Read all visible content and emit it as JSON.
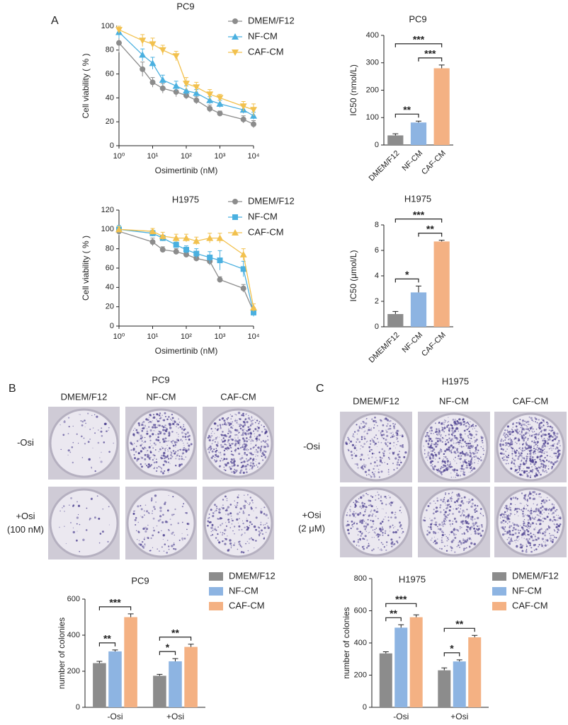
{
  "panel_labels": {
    "a": "A",
    "b": "B",
    "c": "C"
  },
  "chart_data": [
    {
      "type": "scatter",
      "title": "PC9",
      "x_label": "Osimertinib (nM)",
      "y_label": "Cell viability ( % )",
      "x_scale": "log",
      "x": [
        1,
        5,
        10,
        20,
        50,
        100,
        200,
        500,
        1000,
        5000,
        10000
      ],
      "xlim": [
        1,
        10000
      ],
      "xticks": [
        {
          "value": 1,
          "label": "10⁰"
        },
        {
          "value": 10,
          "label": "10¹"
        },
        {
          "value": 100,
          "label": "10²"
        },
        {
          "value": 1000,
          "label": "10³"
        },
        {
          "value": 10000,
          "label": "10⁴"
        }
      ],
      "ylim": [
        0,
        100
      ],
      "yticks": [
        0,
        20,
        40,
        60,
        80,
        100
      ],
      "legend": "upper right",
      "series": [
        {
          "name": "DMEM/F12",
          "color": "#8c8c8c",
          "marker": "circle",
          "values": [
            86,
            64,
            53,
            48,
            45,
            42,
            38,
            31,
            27,
            22,
            18
          ],
          "errors": [
            8,
            6,
            4,
            4,
            4,
            3,
            3,
            3,
            2,
            3,
            3
          ]
        },
        {
          "name": "NF-CM",
          "color": "#4ab0e0",
          "marker": "triangle-up",
          "values": [
            95,
            76,
            69,
            55,
            50,
            46,
            44,
            38,
            35,
            30,
            25
          ],
          "errors": [
            5,
            5,
            5,
            4,
            4,
            4,
            3,
            3,
            3,
            3,
            3
          ]
        },
        {
          "name": "CAF-CM",
          "color": "#f2c14e",
          "marker": "triangle-down",
          "values": [
            97,
            88,
            85,
            80,
            75,
            52,
            49,
            43,
            40,
            33,
            30
          ],
          "errors": [
            3,
            5,
            5,
            4,
            4,
            5,
            4,
            4,
            3,
            4,
            5
          ]
        }
      ]
    },
    {
      "type": "bar",
      "title": "PC9",
      "y_label": "IC50 (nmol/L)",
      "categories": [
        "DMEM/F12",
        "NF-CM",
        "CAF-CM"
      ],
      "values": [
        35,
        82,
        280
      ],
      "errors": [
        6,
        5,
        12
      ],
      "colors": [
        "#8c8c8c",
        "#8db4e2",
        "#f4b183"
      ],
      "ylim": [
        0,
        400
      ],
      "yticks": [
        0,
        100,
        200,
        300,
        400
      ],
      "annotations": [
        {
          "text": "**",
          "between": [
            "DMEM/F12",
            "NF-CM"
          ]
        },
        {
          "text": "***",
          "between": [
            "NF-CM",
            "CAF-CM"
          ]
        },
        {
          "text": "***",
          "between": [
            "DMEM/F12",
            "CAF-CM"
          ]
        }
      ]
    },
    {
      "type": "scatter",
      "title": "H1975",
      "x_label": "Osimertinib (nM)",
      "y_label": "Cell viability ( % )",
      "x_scale": "log",
      "x": [
        1,
        10,
        20,
        50,
        100,
        200,
        500,
        1000,
        5000,
        10000
      ],
      "xlim": [
        1,
        10000
      ],
      "xticks": [
        {
          "value": 1,
          "label": "10⁰"
        },
        {
          "value": 10,
          "label": "10¹"
        },
        {
          "value": 100,
          "label": "10²"
        },
        {
          "value": 1000,
          "label": "10³"
        },
        {
          "value": 10000,
          "label": "10⁴"
        }
      ],
      "ylim": [
        0,
        120
      ],
      "yticks": [
        0,
        20,
        40,
        60,
        80,
        100,
        120
      ],
      "legend": "upper right",
      "series": [
        {
          "name": "DMEM/F12",
          "color": "#8c8c8c",
          "marker": "circle",
          "values": [
            98,
            87,
            79,
            77,
            74,
            70,
            67,
            48,
            39,
            15
          ],
          "errors": [
            4,
            4,
            3,
            3,
            3,
            3,
            4,
            3,
            4,
            4
          ]
        },
        {
          "name": "NF-CM",
          "color": "#4ab0e0",
          "marker": "square",
          "values": [
            100,
            96,
            91,
            84,
            79,
            75,
            71,
            68,
            59,
            14
          ],
          "errors": [
            4,
            3,
            3,
            3,
            4,
            5,
            6,
            10,
            8,
            4
          ]
        },
        {
          "name": "CAF-CM",
          "color": "#f2c14e",
          "marker": "triangle-up",
          "values": [
            100,
            98,
            93,
            91,
            91,
            88,
            91,
            91,
            74,
            19
          ],
          "errors": [
            3,
            3,
            4,
            4,
            4,
            4,
            5,
            5,
            6,
            4
          ]
        }
      ]
    },
    {
      "type": "bar",
      "title": "H1975",
      "y_label": "IC50 (μmol/L)",
      "categories": [
        "DMEM/F12",
        "NF-CM",
        "CAF-CM"
      ],
      "values": [
        1.0,
        2.7,
        6.7
      ],
      "errors": [
        0.2,
        0.5,
        0.1
      ],
      "colors": [
        "#8c8c8c",
        "#8db4e2",
        "#f4b183"
      ],
      "ylim": [
        0,
        8
      ],
      "yticks": [
        0,
        2,
        4,
        6,
        8
      ],
      "annotations": [
        {
          "text": "*",
          "between": [
            "DMEM/F12",
            "NF-CM"
          ]
        },
        {
          "text": "**",
          "between": [
            "NF-CM",
            "CAF-CM"
          ]
        },
        {
          "text": "***",
          "between": [
            "DMEM/F12",
            "CAF-CM"
          ]
        }
      ]
    },
    {
      "type": "grouped_bar",
      "title": "PC9",
      "y_label": "number of colonies",
      "categories": [
        "-Osi",
        "+Osi"
      ],
      "ylim": [
        0,
        600
      ],
      "yticks": [
        0,
        200,
        400,
        600
      ],
      "legend": "upper right",
      "series": [
        {
          "name": "DMEM/F12",
          "color": "#8c8c8c",
          "values": [
            245,
            175
          ],
          "errors": [
            10,
            8
          ]
        },
        {
          "name": "NF-CM",
          "color": "#8db4e2",
          "values": [
            310,
            255
          ],
          "errors": [
            8,
            15
          ]
        },
        {
          "name": "CAF-CM",
          "color": "#f4b183",
          "values": [
            500,
            335
          ],
          "errors": [
            18,
            15
          ]
        }
      ],
      "annotations": [
        {
          "text": "**",
          "group": "-Osi",
          "between": [
            "DMEM/F12",
            "NF-CM"
          ]
        },
        {
          "text": "***",
          "group": "-Osi",
          "between": [
            "DMEM/F12",
            "CAF-CM"
          ]
        },
        {
          "text": "*",
          "group": "+Osi",
          "between": [
            "DMEM/F12",
            "NF-CM"
          ]
        },
        {
          "text": "**",
          "group": "+Osi",
          "between": [
            "DMEM/F12",
            "CAF-CM"
          ]
        }
      ]
    },
    {
      "type": "grouped_bar",
      "title": "H1975",
      "y_label": "number of colonies",
      "categories": [
        "-Osi",
        "+Osi"
      ],
      "ylim": [
        0,
        800
      ],
      "yticks": [
        0,
        200,
        400,
        600,
        800
      ],
      "legend": "upper right",
      "series": [
        {
          "name": "DMEM/F12",
          "color": "#8c8c8c",
          "values": [
            335,
            230
          ],
          "errors": [
            10,
            15
          ]
        },
        {
          "name": "NF-CM",
          "color": "#8db4e2",
          "values": [
            495,
            285
          ],
          "errors": [
            18,
            10
          ]
        },
        {
          "name": "CAF-CM",
          "color": "#f4b183",
          "values": [
            560,
            435
          ],
          "errors": [
            15,
            12
          ]
        }
      ],
      "annotations": [
        {
          "text": "**",
          "group": "-Osi",
          "between": [
            "DMEM/F12",
            "NF-CM"
          ]
        },
        {
          "text": "***",
          "group": "-Osi",
          "between": [
            "DMEM/F12",
            "CAF-CM"
          ]
        },
        {
          "text": "*",
          "group": "+Osi",
          "between": [
            "DMEM/F12",
            "NF-CM"
          ]
        },
        {
          "text": "**",
          "group": "+Osi",
          "between": [
            "DMEM/F12",
            "CAF-CM"
          ]
        }
      ]
    }
  ],
  "colony_panels": [
    {
      "title": "PC9",
      "columns": [
        "DMEM/F12",
        "NF-CM",
        "CAF-CM"
      ],
      "rows": [
        {
          "label": "-Osi"
        },
        {
          "label": "+Osi",
          "sublabel": "(100 nM)"
        }
      ]
    },
    {
      "title": "H1975",
      "columns": [
        "DMEM/F12",
        "NF-CM",
        "CAF-CM"
      ],
      "rows": [
        {
          "label": "-Osi"
        },
        {
          "label": "+Osi",
          "sublabel": "(2 μM)"
        }
      ]
    }
  ]
}
